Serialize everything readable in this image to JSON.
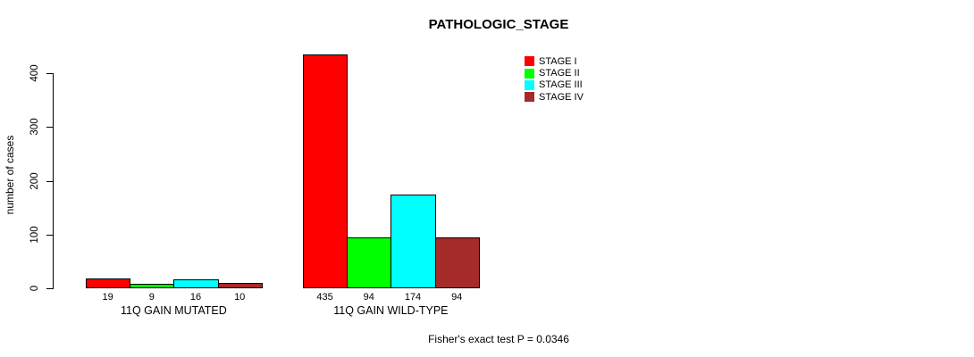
{
  "chart_data": {
    "type": "bar",
    "title": "PATHOLOGIC_STAGE",
    "ylabel": "number of cases",
    "xlabel": "",
    "ylim": [
      0,
      400
    ],
    "yticks": [
      0,
      100,
      200,
      300,
      400
    ],
    "grid": false,
    "legend_position": "top-right",
    "categories": [
      "11Q GAIN MUTATED",
      "11Q GAIN WILD-TYPE"
    ],
    "series": [
      {
        "name": "STAGE I",
        "color": "#FF0000",
        "values": [
          19,
          435
        ]
      },
      {
        "name": "STAGE II",
        "color": "#00FF00",
        "values": [
          9,
          94
        ]
      },
      {
        "name": "STAGE III",
        "color": "#00FFFF",
        "values": [
          16,
          174
        ]
      },
      {
        "name": "STAGE IV",
        "color": "#A52A2A",
        "values": [
          10,
          94
        ]
      }
    ],
    "bar_value_labels": [
      [
        19,
        9,
        16,
        10
      ],
      [
        435,
        94,
        174,
        94
      ]
    ],
    "annotation": "Fisher's exact test P = 0.0346"
  }
}
